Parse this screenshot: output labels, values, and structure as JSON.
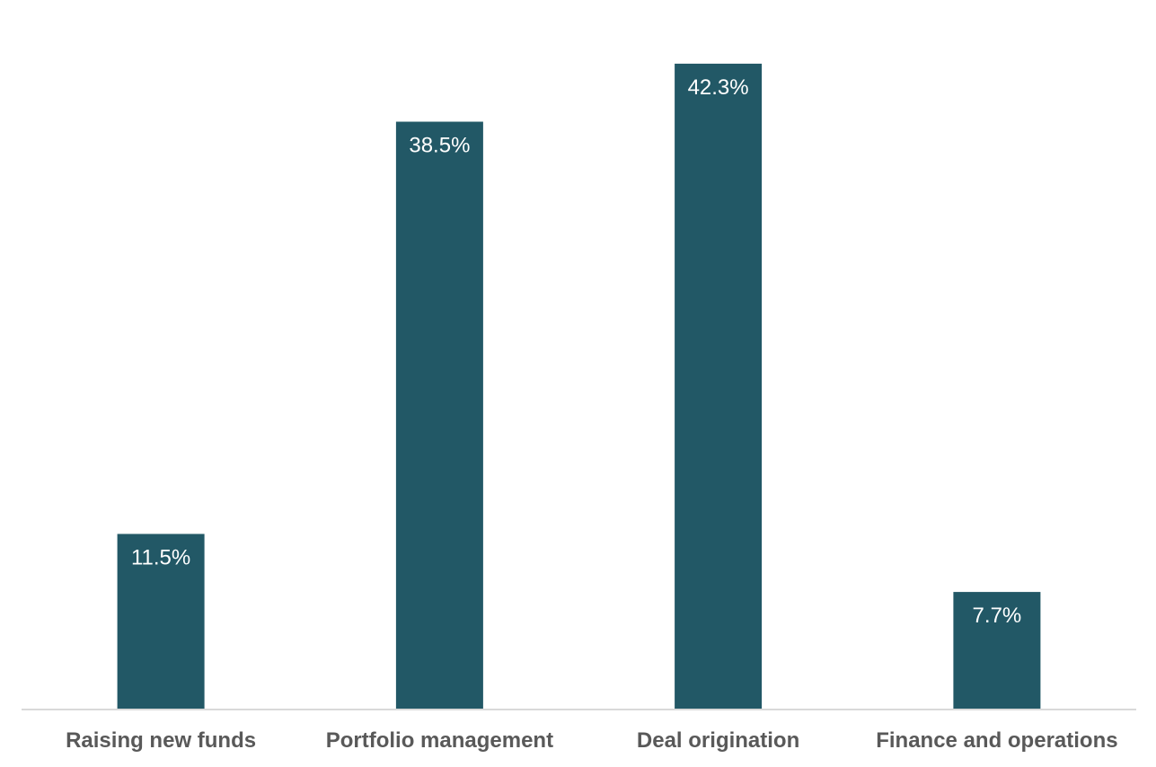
{
  "chart_data": {
    "type": "bar",
    "categories": [
      "Raising new funds",
      "Portfolio management",
      "Deal origination",
      "Finance and operations"
    ],
    "values": [
      11.5,
      38.5,
      42.3,
      7.7
    ],
    "value_labels": [
      "11.5%",
      "38.5%",
      "42.3%",
      "7.7%"
    ],
    "unit": "%",
    "ylim": [
      0,
      45
    ],
    "grid": false,
    "legend": "none",
    "bar_color": "#225866",
    "axis_color": "#d9d9d9",
    "label_color": "#595959",
    "data_label_color": "#ffffff"
  }
}
